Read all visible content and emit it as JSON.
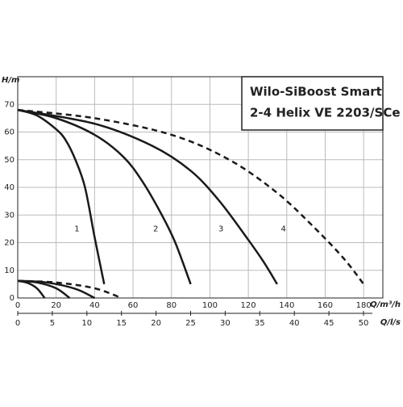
{
  "chart_data": {
    "type": "line",
    "title_lines": [
      "Wilo-SiBoost Smart",
      "2-4 Helix VE 2203/SCe"
    ],
    "ylabel": "H/m",
    "xlabel": "Q/m³/h",
    "x2label": "Q/l/s",
    "xlim": [
      0,
      190
    ],
    "xticks": [
      0,
      20,
      40,
      60,
      80,
      100,
      120,
      140,
      160,
      180
    ],
    "x2lim": [
      0,
      52.8
    ],
    "x2ticks": [
      0,
      5,
      10,
      15,
      20,
      25,
      30,
      35,
      40,
      45,
      50
    ],
    "ylim": [
      0,
      80
    ],
    "yticks": [
      0,
      10,
      20,
      30,
      40,
      50,
      60,
      70
    ],
    "grid": true,
    "series": [
      {
        "name": "1",
        "color": "#1a1a1a",
        "dashed": false,
        "x": [
          0,
          10,
          20,
          25,
          30,
          35,
          40,
          45
        ],
        "values": [
          68,
          66,
          61,
          57,
          50,
          40,
          22,
          5
        ]
      },
      {
        "name": "2",
        "color": "#1a1a1a",
        "dashed": false,
        "x": [
          0,
          20,
          40,
          55,
          65,
          75,
          82,
          90
        ],
        "values": [
          68,
          65,
          59,
          51,
          42,
          30,
          20,
          5
        ]
      },
      {
        "name": "3",
        "color": "#1a1a1a",
        "dashed": false,
        "x": [
          0,
          40,
          70,
          90,
          105,
          120,
          128,
          135
        ],
        "values": [
          68,
          63,
          55,
          46,
          35,
          21,
          13,
          5
        ]
      },
      {
        "name": "4",
        "color": "#1a1a1a",
        "dashed": true,
        "x": [
          0,
          40,
          80,
          110,
          135,
          155,
          170,
          180
        ],
        "values": [
          68,
          65,
          59,
          50,
          38,
          25,
          14,
          5
        ]
      },
      {
        "color": "#1a1a1a",
        "dashed": false,
        "x": [
          0,
          5,
          10,
          14
        ],
        "values": [
          6.2,
          5.5,
          3.5,
          0
        ]
      },
      {
        "color": "#1a1a1a",
        "dashed": false,
        "x": [
          0,
          10,
          20,
          27
        ],
        "values": [
          6.2,
          5.6,
          3.5,
          0
        ]
      },
      {
        "color": "#1a1a1a",
        "dashed": false,
        "x": [
          0,
          15,
          30,
          40
        ],
        "values": [
          6.2,
          5.6,
          3.3,
          0
        ]
      },
      {
        "color": "#1a1a1a",
        "dashed": true,
        "x": [
          0,
          20,
          40,
          54
        ],
        "values": [
          6.2,
          5.6,
          3.5,
          0
        ]
      }
    ]
  }
}
